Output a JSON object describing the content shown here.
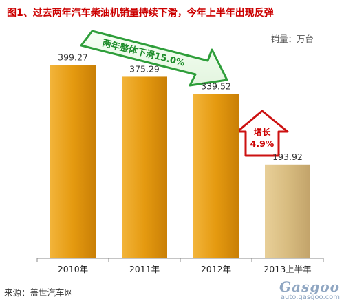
{
  "chart_data": {
    "type": "bar",
    "title": "图1、过去两年汽车柴油机销量持续下滑，今年上半年出现反弹",
    "unit_label": "销量：万台",
    "categories": [
      "2010年",
      "2011年",
      "2012年",
      "2013上半年"
    ],
    "values": [
      399.27,
      375.29,
      339.52,
      193.92
    ],
    "value_labels": [
      "399.27",
      "375.29",
      "339.52",
      "193.92"
    ],
    "ylim": [
      0,
      420
    ],
    "grid": false,
    "legend": "none",
    "bar_colors": [
      "#e59a10",
      "#e59a10",
      "#e59a10",
      "#d8bc80"
    ],
    "annotations": {
      "decline": {
        "text": "两年整体下滑15.0%",
        "color": "#1e8c2a"
      },
      "growth": {
        "line1": "增长",
        "line2": "4.9%",
        "color": "#cc0000"
      }
    },
    "source": "来源：盖世汽车网",
    "watermark": {
      "logo": "Gasgoo",
      "url": "auto.gasgoo.com"
    }
  }
}
